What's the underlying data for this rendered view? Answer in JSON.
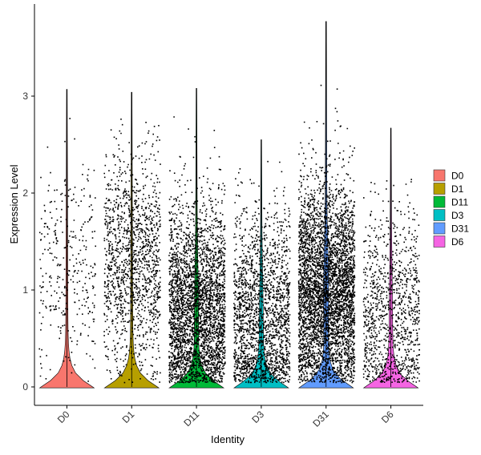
{
  "chart_data": {
    "type": "violin",
    "xlabel": "Identity",
    "ylabel": "Expression Level",
    "ylim": [
      -0.2,
      3.85
    ],
    "yticks": [
      0,
      1,
      2,
      3
    ],
    "ytick_labels": [
      "0",
      "1",
      "2",
      "3"
    ],
    "grid": false,
    "legend_position": "right",
    "categories": [
      "D0",
      "D1",
      "D11",
      "D3",
      "D31",
      "D6"
    ],
    "series": [
      {
        "name": "D0",
        "color": "#F8766D",
        "max": 3.07,
        "zero_fraction": 0.97,
        "points_nonzero": 330,
        "mean_nonzero": 1.25
      },
      {
        "name": "D1",
        "color": "#B79F00",
        "max": 3.04,
        "zero_fraction": 0.95,
        "points_nonzero": 1400,
        "mean_nonzero": 1.3
      },
      {
        "name": "D11",
        "color": "#00BA38",
        "max": 3.08,
        "zero_fraction": 0.7,
        "points_nonzero": 3200,
        "mean_nonzero": 0.8
      },
      {
        "name": "D3",
        "color": "#00BFC4",
        "max": 2.55,
        "zero_fraction": 0.72,
        "points_nonzero": 2000,
        "mean_nonzero": 0.7
      },
      {
        "name": "D31",
        "color": "#619CFF",
        "max": 3.77,
        "zero_fraction": 0.55,
        "points_nonzero": 4200,
        "mean_nonzero": 1.0
      },
      {
        "name": "D6",
        "color": "#F564E3",
        "max": 2.67,
        "zero_fraction": 0.8,
        "points_nonzero": 1100,
        "mean_nonzero": 0.75
      }
    ]
  }
}
